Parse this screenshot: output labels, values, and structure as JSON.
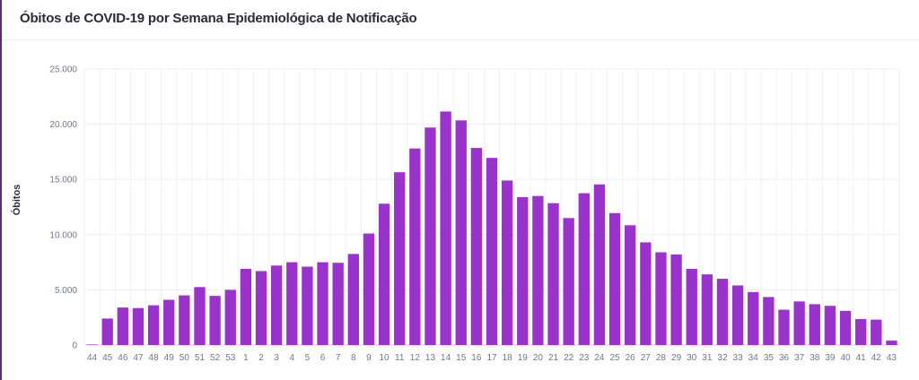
{
  "title": "Óbitos de COVID-19 por Semana Epidemiológica de Notificação",
  "chart_data": {
    "type": "bar",
    "title": "Óbitos de COVID-19 por Semana Epidemiológica de Notificação",
    "xlabel": "",
    "ylabel": "Óbitos",
    "ylim": [
      0,
      25000
    ],
    "yticks": [
      "0",
      "5.000",
      "10.000",
      "15.000",
      "20.000",
      "25.000"
    ],
    "grid": true,
    "bar_color": "#9933cc",
    "categories": [
      "44",
      "45",
      "46",
      "47",
      "48",
      "49",
      "50",
      "51",
      "52",
      "53",
      "1",
      "2",
      "3",
      "4",
      "5",
      "6",
      "7",
      "8",
      "9",
      "10",
      "11",
      "12",
      "13",
      "14",
      "15",
      "16",
      "17",
      "18",
      "19",
      "20",
      "21",
      "22",
      "23",
      "24",
      "25",
      "26",
      "27",
      "28",
      "29",
      "30",
      "31",
      "32",
      "33",
      "34",
      "35",
      "36",
      "37",
      "38",
      "39",
      "40",
      "41",
      "42",
      "43"
    ],
    "values": [
      50,
      2400,
      3400,
      3350,
      3600,
      4100,
      4500,
      5250,
      4450,
      5000,
      6900,
      6700,
      7200,
      7500,
      7100,
      7500,
      7450,
      8250,
      10100,
      12800,
      15650,
      17800,
      19700,
      21150,
      20350,
      17850,
      16950,
      14900,
      13400,
      13500,
      12850,
      11500,
      13750,
      14550,
      11950,
      10850,
      9300,
      8400,
      8200,
      6900,
      6400,
      6000,
      5400,
      4800,
      4350,
      3200,
      3950,
      3700,
      3550,
      3100,
      2350,
      2300,
      400
    ]
  }
}
